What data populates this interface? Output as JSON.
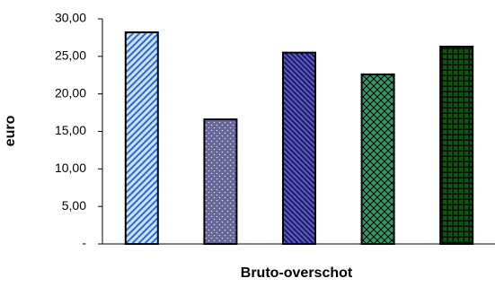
{
  "chart_data": {
    "type": "bar",
    "x_label": "Bruto-overschot",
    "y_label": "euro",
    "categories": [
      null,
      null,
      null,
      null,
      null
    ],
    "values": [
      28.2,
      16.6,
      25.5,
      22.6,
      26.3
    ],
    "colors": [
      "#99ccff",
      "#666699",
      "#1f1f7a",
      "#339966",
      "#003300"
    ],
    "ylim": [
      0,
      30
    ],
    "yticks": [
      {
        "value": 0,
        "label": "-"
      },
      {
        "value": 5,
        "label": "5,00"
      },
      {
        "value": 10,
        "label": "10,00"
      },
      {
        "value": 15,
        "label": "15,00"
      },
      {
        "value": 20,
        "label": "20,00"
      },
      {
        "value": 25,
        "label": "25,00"
      },
      {
        "value": 30,
        "label": "30,00"
      }
    ],
    "grid": false
  }
}
